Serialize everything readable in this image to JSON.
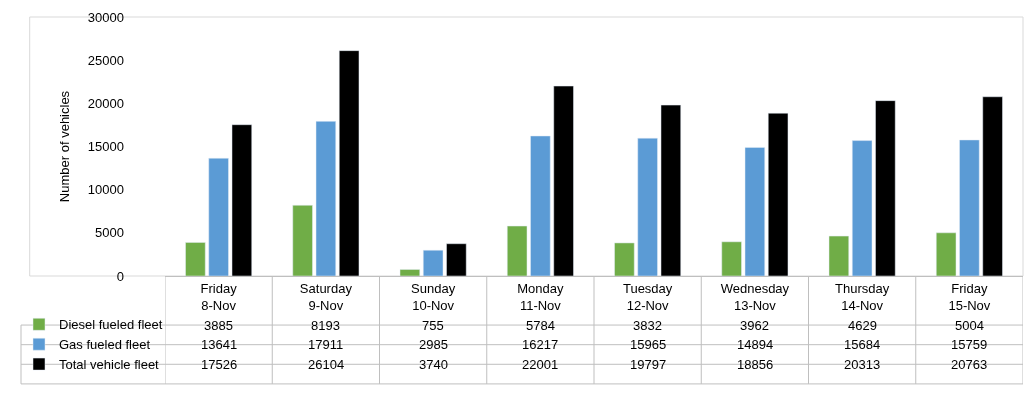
{
  "chart_data": {
    "type": "bar",
    "ylabel": "Number of vehicles",
    "categories": [
      "Friday\n8-Nov",
      "Saturday\n9-Nov",
      "Sunday\n10-Nov",
      "Monday\n11-Nov",
      "Tuesday\n12-Nov",
      "Wednesday\n13-Nov",
      "Thursday\n14-Nov",
      "Friday\n15-Nov"
    ],
    "series": [
      {
        "name": "Diesel fueled fleet",
        "color": "#70ad47",
        "values": [
          3885,
          8193,
          755,
          5784,
          3832,
          3962,
          4629,
          5004
        ]
      },
      {
        "name": "Gas fueled fleet",
        "color": "#5b9bd5",
        "values": [
          13641,
          17911,
          2985,
          16217,
          15965,
          14894,
          15684,
          15759
        ]
      },
      {
        "name": "Total vehicle fleet",
        "color": "#000000",
        "values": [
          17526,
          26104,
          3740,
          22001,
          19797,
          18856,
          20313,
          20763
        ]
      }
    ],
    "ylim": [
      0,
      30000
    ],
    "yticks": [
      0,
      5000,
      10000,
      15000,
      20000,
      25000,
      30000
    ],
    "grid": false,
    "legend": "bottom",
    "data_labels": true
  }
}
